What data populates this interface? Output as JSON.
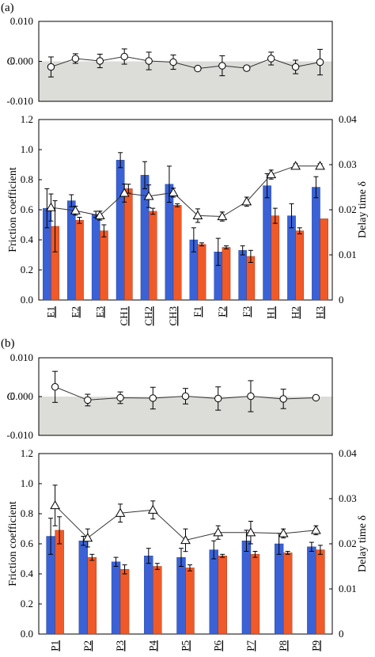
{
  "colors": {
    "blue": "#3a62d6",
    "orange": "#f05a28",
    "shade": "#dcdcd8",
    "frame": "#000000"
  },
  "chart_data": [
    {
      "panel": "(a)",
      "type": "line",
      "ylabel": "C",
      "ylim": [
        -0.01,
        0.01
      ],
      "yticks": [
        "0.010",
        "0.000",
        "-0.010"
      ],
      "shaded_region": "below 0",
      "categories": [
        "E1",
        "E2",
        "E3",
        "CH1",
        "CH2",
        "CH3",
        "F1",
        "F2",
        "F3",
        "H1",
        "H2",
        "H3"
      ],
      "series": [
        {
          "marker": "circle",
          "values": [
            -0.0014,
            0.0007,
            0.0001,
            0.0012,
            0.0001,
            -0.0002,
            -0.0018,
            -0.0011,
            -0.0017,
            0.0007,
            -0.0014,
            -0.0002
          ],
          "errors": [
            0.0025,
            0.0012,
            0.0017,
            0.0019,
            0.0022,
            0.0018,
            0.0003,
            0.0025,
            0.0006,
            0.0016,
            0.0017,
            0.0032
          ]
        }
      ]
    },
    {
      "panel": "(a)",
      "type": "bar",
      "ylabel": "Friction coefficient",
      "ylabel_right": "Delay time δ",
      "ylim": [
        0,
        1.2
      ],
      "ylim_right": [
        0,
        0.04
      ],
      "yticks": [
        "0.0",
        "0.2",
        "0.4",
        "0.6",
        "0.8",
        "1.0",
        "1.2"
      ],
      "yticks_right": [
        "0",
        "0.01",
        "0.02",
        "0.03",
        "0.04"
      ],
      "categories": [
        "E1",
        "E2",
        "E3",
        "CH1",
        "CH2",
        "CH3",
        "F1",
        "F2",
        "F3",
        "H1",
        "H2",
        "H3"
      ],
      "series": [
        {
          "color": "blue",
          "values": [
            0.61,
            0.66,
            0.57,
            0.93,
            0.83,
            0.77,
            0.4,
            0.32,
            0.33,
            0.76,
            0.56,
            0.75
          ],
          "errors": [
            0.13,
            0.04,
            0.02,
            0.05,
            0.09,
            0.12,
            0.08,
            0.09,
            0.03,
            0.08,
            0.08,
            0.07
          ]
        },
        {
          "color": "orange",
          "values": [
            0.49,
            0.53,
            0.46,
            0.74,
            0.59,
            0.63,
            0.37,
            0.35,
            0.29,
            0.56,
            0.46,
            0.54
          ],
          "errors": [
            0.17,
            0.02,
            0.04,
            0.03,
            0.02,
            0.01,
            0.01,
            0.01,
            0.04,
            0.05,
            0.02,
            0.0
          ]
        },
        {
          "marker": "triangle",
          "axis": "right",
          "values": [
            0.0205,
            0.0198,
            0.0187,
            0.0237,
            0.023,
            0.0238,
            0.0187,
            0.0185,
            0.0218,
            0.0278,
            0.0297,
            0.0297
          ],
          "errors": [
            0.003,
            0.001,
            0.001,
            0.002,
            0.0025,
            0.001,
            0.0015,
            0.001,
            0.001,
            0.001,
            0.0005,
            0.0005
          ]
        }
      ]
    },
    {
      "panel": "(b)",
      "type": "line",
      "ylabel": "C",
      "ylim": [
        -0.01,
        0.01
      ],
      "yticks": [
        "0.010",
        "0.000",
        "-0.010"
      ],
      "shaded_region": "below 0",
      "categories": [
        "P1",
        "P2",
        "P3",
        "P4",
        "P5",
        "P6",
        "P7",
        "P8",
        "P9"
      ],
      "series": [
        {
          "marker": "circle",
          "values": [
            0.0025,
            -0.0009,
            -0.0003,
            -0.0004,
            0.0001,
            -0.0005,
            0.0001,
            -0.0006,
            -0.0003
          ],
          "errors": [
            0.004,
            0.0015,
            0.0015,
            0.0028,
            0.002,
            0.003,
            0.004,
            0.0025,
            0.0
          ]
        }
      ]
    },
    {
      "panel": "(b)",
      "type": "bar",
      "ylabel": "Friction coefficient",
      "ylabel_right": "Delay time δ",
      "ylim": [
        0,
        1.2
      ],
      "ylim_right": [
        0,
        0.04
      ],
      "yticks": [
        "0.0",
        "0.2",
        "0.4",
        "0.6",
        "0.8",
        "1.0",
        "1.2"
      ],
      "yticks_right": [
        "0",
        "0.01",
        "0.02",
        "0.03",
        "0.04"
      ],
      "categories": [
        "P1",
        "P2",
        "P3",
        "P4",
        "P5",
        "P6",
        "P7",
        "P8",
        "P9"
      ],
      "series": [
        {
          "color": "blue",
          "values": [
            0.65,
            0.62,
            0.48,
            0.52,
            0.51,
            0.56,
            0.62,
            0.6,
            0.58
          ],
          "errors": [
            0.12,
            0.03,
            0.03,
            0.05,
            0.06,
            0.06,
            0.07,
            0.07,
            0.03
          ]
        },
        {
          "color": "orange",
          "values": [
            0.69,
            0.51,
            0.43,
            0.45,
            0.44,
            0.52,
            0.53,
            0.54,
            0.56
          ],
          "errors": [
            0.09,
            0.02,
            0.03,
            0.02,
            0.02,
            0.01,
            0.02,
            0.01,
            0.03
          ]
        },
        {
          "marker": "triangle",
          "axis": "right",
          "values": [
            0.0285,
            0.0213,
            0.0268,
            0.0275,
            0.0208,
            0.0225,
            0.0225,
            0.0223,
            0.023
          ],
          "errors": [
            0.0045,
            0.002,
            0.002,
            0.002,
            0.0025,
            0.0015,
            0.0025,
            0.001,
            0.001
          ]
        }
      ]
    }
  ],
  "panel_labels": [
    "(a)",
    "(b)"
  ]
}
